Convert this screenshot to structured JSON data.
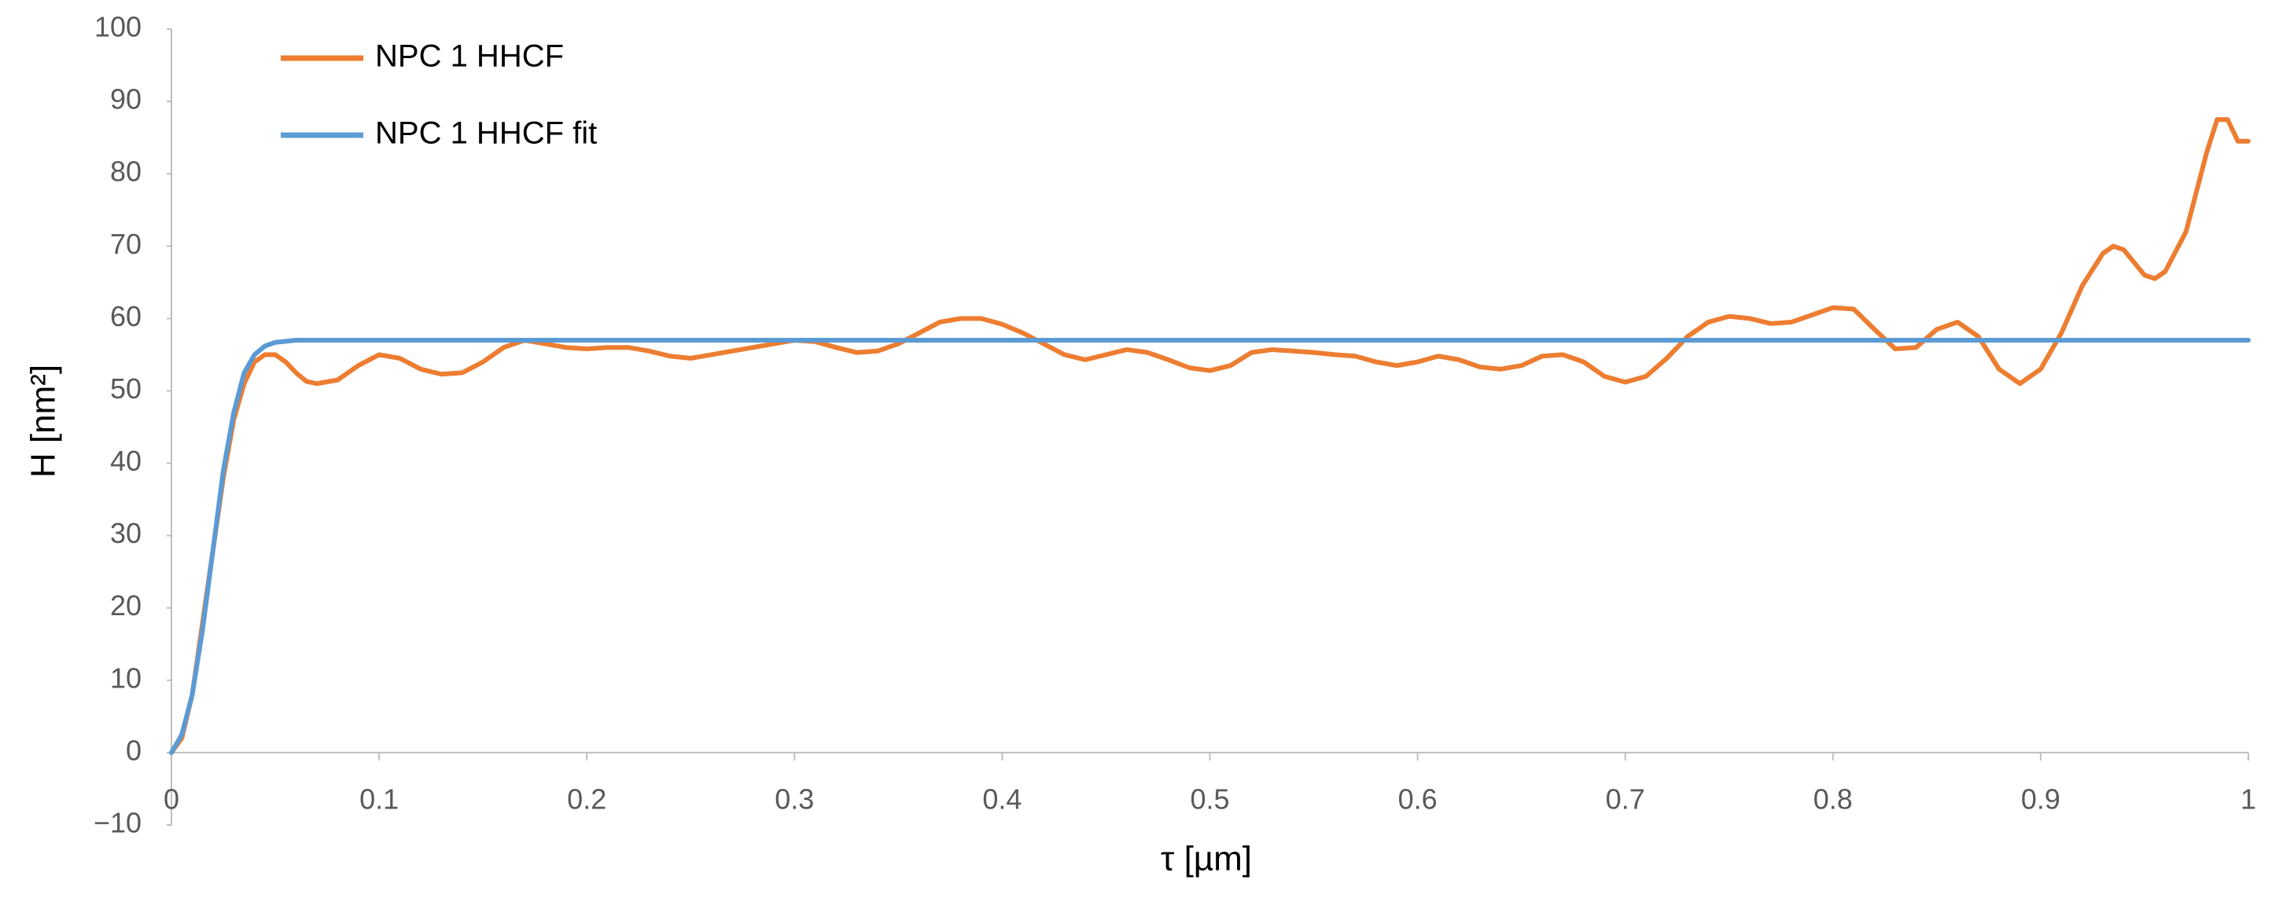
{
  "chart_data": {
    "type": "line",
    "x_label": "τ [µm]",
    "y_label": "H [nm²]",
    "xlim": [
      0,
      1
    ],
    "xticks": [
      0,
      0.1,
      0.2,
      0.3,
      0.4,
      0.5,
      0.6,
      0.7,
      0.8,
      0.9,
      1
    ],
    "ylim": [
      -10,
      100
    ],
    "yticks": [
      {
        "value": -10,
        "label": "−10"
      },
      0,
      10,
      20,
      30,
      40,
      50,
      60,
      70,
      80,
      90,
      100
    ],
    "grid": false,
    "legend": "top-left",
    "series": [
      {
        "name": "NPC 1 HHCF",
        "color": "#ed7d31",
        "x": [
          0,
          0.005,
          0.01,
          0.015,
          0.02,
          0.025,
          0.03,
          0.035,
          0.04,
          0.045,
          0.05,
          0.055,
          0.06,
          0.065,
          0.07,
          0.08,
          0.09,
          0.1,
          0.11,
          0.12,
          0.13,
          0.14,
          0.15,
          0.16,
          0.17,
          0.18,
          0.19,
          0.2,
          0.21,
          0.22,
          0.23,
          0.24,
          0.25,
          0.26,
          0.27,
          0.28,
          0.29,
          0.3,
          0.31,
          0.32,
          0.33,
          0.34,
          0.35,
          0.36,
          0.37,
          0.38,
          0.39,
          0.4,
          0.41,
          0.42,
          0.43,
          0.44,
          0.45,
          0.46,
          0.47,
          0.48,
          0.49,
          0.5,
          0.51,
          0.52,
          0.53,
          0.54,
          0.55,
          0.56,
          0.57,
          0.58,
          0.59,
          0.6,
          0.61,
          0.62,
          0.63,
          0.64,
          0.65,
          0.66,
          0.67,
          0.68,
          0.69,
          0.7,
          0.71,
          0.72,
          0.73,
          0.74,
          0.75,
          0.76,
          0.77,
          0.78,
          0.79,
          0.8,
          0.81,
          0.82,
          0.83,
          0.84,
          0.85,
          0.86,
          0.87,
          0.88,
          0.89,
          0.9,
          0.91,
          0.92,
          0.93,
          0.935,
          0.94,
          0.95,
          0.955,
          0.96,
          0.97,
          0.98,
          0.985,
          0.99,
          0.995,
          1
        ],
        "values": [
          0,
          2,
          8,
          18,
          28,
          38,
          46,
          51,
          54,
          55,
          55,
          54,
          52.5,
          51.3,
          51,
          51.5,
          53.5,
          55,
          54.5,
          53,
          52.3,
          52.5,
          54,
          56,
          57,
          56.5,
          56,
          55.8,
          56,
          56,
          55.5,
          54.8,
          54.5,
          55,
          55.5,
          56,
          56.5,
          57,
          56.8,
          56,
          55.3,
          55.5,
          56.5,
          58,
          59.5,
          60,
          60,
          59.2,
          58,
          56.5,
          55,
          54.3,
          55,
          55.7,
          55.3,
          54.3,
          53.2,
          52.8,
          53.5,
          55.3,
          55.7,
          55.5,
          55.3,
          55,
          54.8,
          54,
          53.5,
          54,
          54.8,
          54.3,
          53.3,
          53,
          53.5,
          54.8,
          55,
          54,
          52,
          51.2,
          52,
          54.5,
          57.5,
          59.5,
          60.3,
          60,
          59.3,
          59.5,
          60.5,
          61.5,
          61.3,
          58.5,
          55.8,
          56,
          58.5,
          59.5,
          57.5,
          53,
          51,
          53,
          58,
          64.5,
          69,
          70,
          69.5,
          66,
          65.5,
          66.5,
          72,
          83,
          87.5,
          87.5,
          84.5,
          84.5
        ]
      },
      {
        "name": "NPC 1 HHCF fit",
        "color": "#5b9bd5",
        "x": [
          0,
          0.005,
          0.01,
          0.015,
          0.02,
          0.025,
          0.03,
          0.035,
          0.04,
          0.045,
          0.05,
          0.06,
          1
        ],
        "values": [
          0,
          2.5,
          8,
          17,
          28,
          39,
          47,
          52.5,
          55,
          56.2,
          56.7,
          57,
          57
        ]
      }
    ]
  }
}
